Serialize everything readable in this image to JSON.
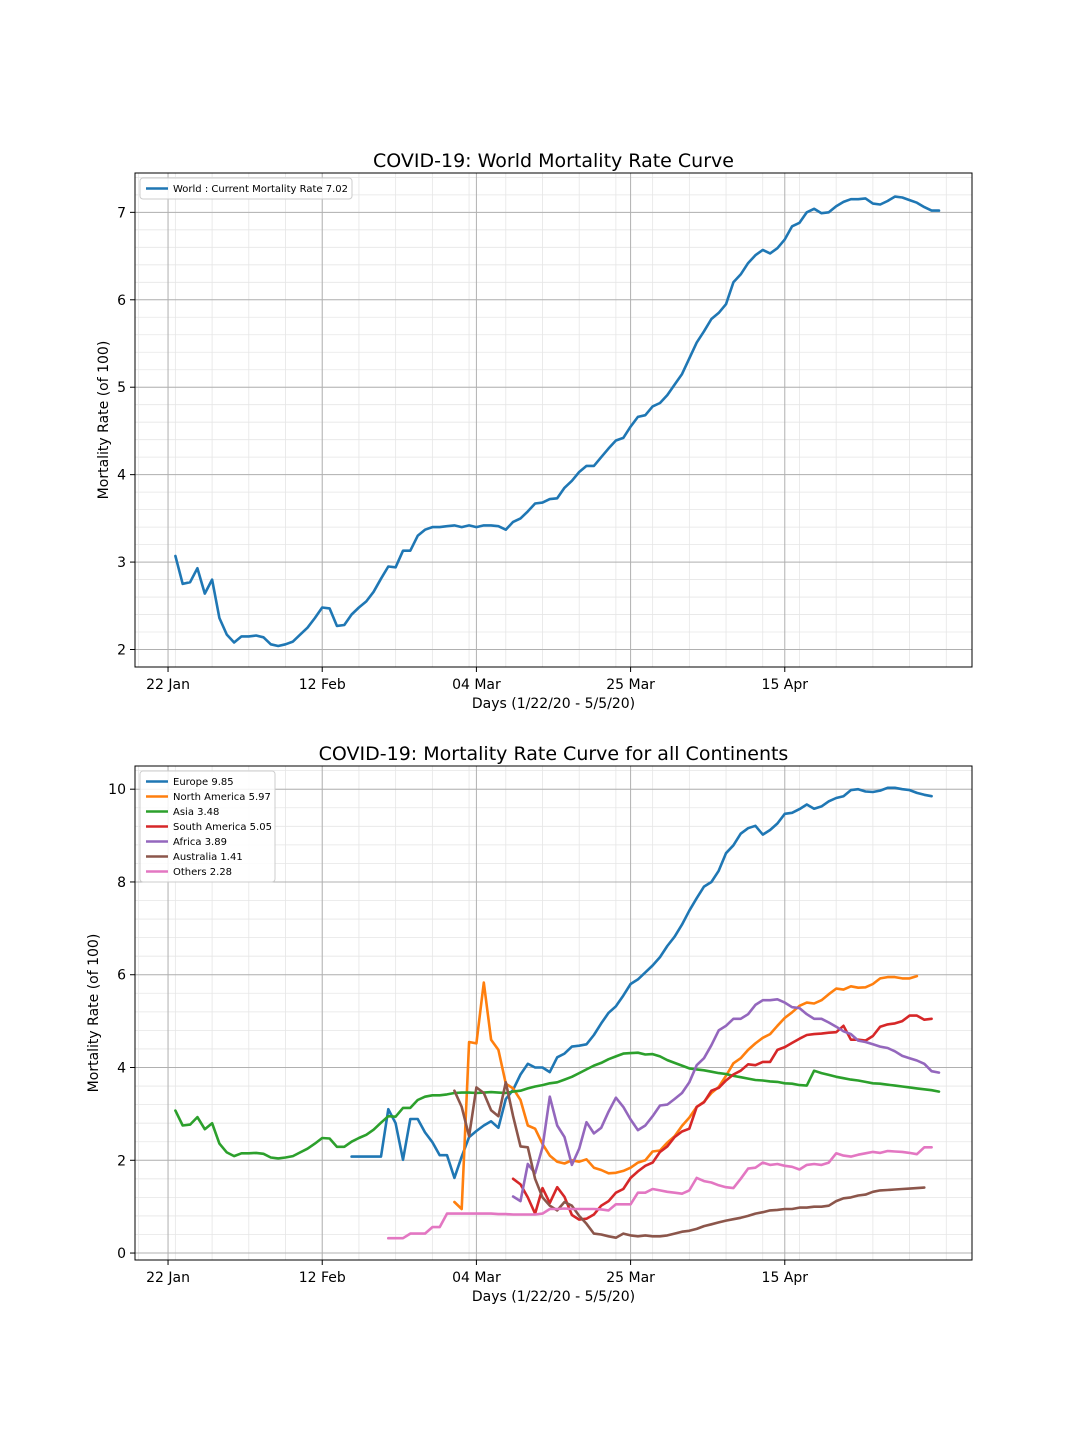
{
  "chart_data": [
    {
      "type": "line",
      "title": "COVID-19: World Mortality Rate Curve",
      "xlabel": "Days (1/22/20 - 5/5/20)",
      "ylabel": "Mortality Rate (of 100)",
      "xticks": [
        {
          "day": 0,
          "label": "22 Jan"
        },
        {
          "day": 21,
          "label": "12 Feb"
        },
        {
          "day": 42,
          "label": "04 Mar"
        },
        {
          "day": 63,
          "label": "25 Mar"
        },
        {
          "day": 84,
          "label": "15 Apr"
        }
      ],
      "xlim": [
        -4.5,
        109.5
      ],
      "ylim": [
        1.8,
        7.45
      ],
      "yticks": [
        2,
        3,
        4,
        5,
        6,
        7
      ],
      "grid": true,
      "legend_position": "upper left",
      "series": [
        {
          "name": "World : Current Mortality Rate 7.02",
          "color": "#1f77b4",
          "x_start": 1,
          "values": [
            3.07,
            2.75,
            2.77,
            2.93,
            2.64,
            2.8,
            2.36,
            2.17,
            2.08,
            2.15,
            2.15,
            2.16,
            2.14,
            2.06,
            2.04,
            2.06,
            2.09,
            2.17,
            2.25,
            2.36,
            2.48,
            2.47,
            2.27,
            2.28,
            2.4,
            2.48,
            2.55,
            2.66,
            2.81,
            2.95,
            2.94,
            3.13,
            3.13,
            3.3,
            3.37,
            3.4,
            3.4,
            3.41,
            3.42,
            3.4,
            3.42,
            3.4,
            3.42,
            3.42,
            3.41,
            3.37,
            3.46,
            3.5,
            3.58,
            3.67,
            3.68,
            3.72,
            3.73,
            3.85,
            3.93,
            4.03,
            4.1,
            4.1,
            4.2,
            4.3,
            4.39,
            4.42,
            4.55,
            4.66,
            4.68,
            4.78,
            4.82,
            4.91,
            5.03,
            5.15,
            5.33,
            5.51,
            5.64,
            5.78,
            5.85,
            5.95,
            6.2,
            6.29,
            6.42,
            6.51,
            6.57,
            6.53,
            6.59,
            6.69,
            6.84,
            6.88,
            7.0,
            7.04,
            6.99,
            7.0,
            7.07,
            7.12,
            7.15,
            7.15,
            7.16,
            7.1,
            7.09,
            7.13,
            7.18,
            7.17,
            7.14,
            7.11,
            7.06,
            7.02,
            7.02
          ]
        }
      ]
    },
    {
      "type": "line",
      "title": "COVID-19: Mortality Rate Curve for all Continents",
      "xlabel": "Days (1/22/20 - 5/5/20)",
      "ylabel": "Mortality Rate (of 100)",
      "xticks": [
        {
          "day": 0,
          "label": "22 Jan"
        },
        {
          "day": 21,
          "label": "12 Feb"
        },
        {
          "day": 42,
          "label": "04 Mar"
        },
        {
          "day": 63,
          "label": "25 Mar"
        },
        {
          "day": 84,
          "label": "15 Apr"
        }
      ],
      "xlim": [
        -4.5,
        109.5
      ],
      "ylim": [
        -0.15,
        10.5
      ],
      "yticks": [
        0,
        2,
        4,
        6,
        8,
        10
      ],
      "grid": true,
      "legend_position": "upper left",
      "series": [
        {
          "name": "Europe 9.85",
          "color": "#1f77b4",
          "x_start": 25,
          "values": [
            2.08,
            2.08,
            2.08,
            2.08,
            2.08,
            3.1,
            2.8,
            2.01,
            2.89,
            2.89,
            2.6,
            2.39,
            2.11,
            2.11,
            1.62,
            2.08,
            2.5,
            2.63,
            2.75,
            2.84,
            2.7,
            3.32,
            3.52,
            3.85,
            4.08,
            4.0,
            4.0,
            3.9,
            4.22,
            4.3,
            4.45,
            4.47,
            4.5,
            4.7,
            4.95,
            5.18,
            5.32,
            5.55,
            5.8,
            5.9,
            6.05,
            6.2,
            6.38,
            6.62,
            6.82,
            7.08,
            7.38,
            7.65,
            7.9,
            8.0,
            8.24,
            8.62,
            8.79,
            9.04,
            9.16,
            9.21,
            9.02,
            9.12,
            9.26,
            9.47,
            9.49,
            9.57,
            9.67,
            9.58,
            9.63,
            9.74,
            9.81,
            9.85,
            9.98,
            10.0,
            9.95,
            9.94,
            9.97,
            10.03,
            10.03,
            10.0,
            9.98,
            9.92,
            9.88,
            9.85
          ]
        },
        {
          "name": "North America 5.97",
          "color": "#ff7f0e",
          "x_start": 39,
          "values": [
            1.1,
            0.95,
            4.55,
            4.52,
            5.83,
            4.6,
            4.38,
            3.65,
            3.55,
            3.3,
            2.75,
            2.68,
            2.35,
            2.1,
            1.97,
            1.93,
            2.0,
            1.97,
            2.02,
            1.84,
            1.79,
            1.72,
            1.73,
            1.77,
            1.84,
            1.95,
            2.0,
            2.19,
            2.21,
            2.38,
            2.52,
            2.74,
            2.92,
            3.15,
            3.26,
            3.45,
            3.58,
            3.82,
            4.09,
            4.2,
            4.38,
            4.52,
            4.64,
            4.72,
            4.9,
            5.07,
            5.19,
            5.33,
            5.4,
            5.38,
            5.45,
            5.58,
            5.7,
            5.68,
            5.75,
            5.72,
            5.73,
            5.8,
            5.92,
            5.95,
            5.95,
            5.92,
            5.92,
            5.97
          ]
        },
        {
          "name": "Asia 3.48",
          "color": "#2ca02c",
          "x_start": 1,
          "values": [
            3.07,
            2.75,
            2.77,
            2.93,
            2.67,
            2.8,
            2.36,
            2.17,
            2.09,
            2.15,
            2.15,
            2.16,
            2.14,
            2.06,
            2.04,
            2.06,
            2.09,
            2.17,
            2.25,
            2.36,
            2.48,
            2.47,
            2.29,
            2.29,
            2.4,
            2.48,
            2.55,
            2.66,
            2.81,
            2.95,
            2.94,
            3.13,
            3.13,
            3.3,
            3.37,
            3.4,
            3.4,
            3.42,
            3.45,
            3.46,
            3.46,
            3.45,
            3.46,
            3.47,
            3.46,
            3.45,
            3.48,
            3.5,
            3.55,
            3.59,
            3.62,
            3.66,
            3.68,
            3.74,
            3.8,
            3.88,
            3.96,
            4.04,
            4.1,
            4.18,
            4.24,
            4.3,
            4.31,
            4.32,
            4.28,
            4.29,
            4.24,
            4.16,
            4.1,
            4.04,
            3.98,
            3.96,
            3.94,
            3.91,
            3.88,
            3.86,
            3.82,
            3.79,
            3.76,
            3.73,
            3.72,
            3.7,
            3.69,
            3.66,
            3.65,
            3.62,
            3.61,
            3.93,
            3.88,
            3.84,
            3.8,
            3.77,
            3.74,
            3.72,
            3.69,
            3.66,
            3.65,
            3.63,
            3.61,
            3.59,
            3.57,
            3.55,
            3.53,
            3.51,
            3.48
          ]
        },
        {
          "name": "South America 5.05",
          "color": "#d62728",
          "x_start": 47,
          "values": [
            1.6,
            1.48,
            1.2,
            0.85,
            1.4,
            1.08,
            1.42,
            1.21,
            0.82,
            0.72,
            0.74,
            0.83,
            1.02,
            1.12,
            1.3,
            1.38,
            1.62,
            1.76,
            1.88,
            1.95,
            2.18,
            2.3,
            2.5,
            2.62,
            2.68,
            3.15,
            3.25,
            3.5,
            3.56,
            3.72,
            3.85,
            3.93,
            4.07,
            4.05,
            4.12,
            4.12,
            4.38,
            4.44,
            4.53,
            4.62,
            4.7,
            4.72,
            4.73,
            4.75,
            4.76,
            4.9,
            4.6,
            4.6,
            4.58,
            4.68,
            4.88,
            4.93,
            4.95,
            5.0,
            5.12,
            5.12,
            5.03,
            5.05
          ]
        },
        {
          "name": "Africa 3.89",
          "color": "#9467bd",
          "x_start": 47,
          "values": [
            1.22,
            1.12,
            1.92,
            1.72,
            2.28,
            3.37,
            2.75,
            2.5,
            1.9,
            2.25,
            2.82,
            2.58,
            2.7,
            3.05,
            3.35,
            3.15,
            2.88,
            2.65,
            2.75,
            2.95,
            3.18,
            3.2,
            3.32,
            3.45,
            3.68,
            4.05,
            4.2,
            4.48,
            4.8,
            4.9,
            5.05,
            5.05,
            5.15,
            5.35,
            5.45,
            5.45,
            5.47,
            5.4,
            5.3,
            5.28,
            5.15,
            5.05,
            5.05,
            4.97,
            4.88,
            4.78,
            4.72,
            4.58,
            4.55,
            4.5,
            4.45,
            4.42,
            4.35,
            4.25,
            4.2,
            4.15,
            4.08,
            3.92,
            3.89
          ]
        },
        {
          "name": "Australia 1.41",
          "color": "#8c564b",
          "x_start": 39,
          "values": [
            3.5,
            3.15,
            2.52,
            3.57,
            3.45,
            3.08,
            2.95,
            3.68,
            2.95,
            2.3,
            2.28,
            1.6,
            1.2,
            1.02,
            0.92,
            1.1,
            1.02,
            0.8,
            0.63,
            0.42,
            0.4,
            0.36,
            0.33,
            0.42,
            0.38,
            0.36,
            0.38,
            0.36,
            0.36,
            0.38,
            0.42,
            0.46,
            0.48,
            0.52,
            0.58,
            0.62,
            0.66,
            0.7,
            0.73,
            0.76,
            0.8,
            0.85,
            0.88,
            0.92,
            0.93,
            0.95,
            0.95,
            0.98,
            0.98,
            1.0,
            1.0,
            1.02,
            1.12,
            1.18,
            1.2,
            1.24,
            1.26,
            1.32,
            1.35,
            1.36,
            1.37,
            1.38,
            1.39,
            1.4,
            1.41
          ]
        },
        {
          "name": "Others 2.28",
          "color": "#e377c2",
          "x_start": 30,
          "values": [
            0.32,
            0.32,
            0.32,
            0.42,
            0.42,
            0.42,
            0.56,
            0.56,
            0.85,
            0.85,
            0.85,
            0.85,
            0.85,
            0.85,
            0.85,
            0.84,
            0.84,
            0.83,
            0.83,
            0.83,
            0.83,
            0.85,
            0.95,
            0.95,
            0.96,
            0.95,
            0.95,
            0.95,
            0.95,
            0.94,
            0.92,
            1.05,
            1.05,
            1.05,
            1.3,
            1.3,
            1.38,
            1.35,
            1.32,
            1.3,
            1.28,
            1.35,
            1.62,
            1.55,
            1.52,
            1.46,
            1.42,
            1.4,
            1.6,
            1.82,
            1.84,
            1.95,
            1.9,
            1.92,
            1.88,
            1.86,
            1.8,
            1.9,
            1.92,
            1.9,
            1.95,
            2.15,
            2.1,
            2.08,
            2.12,
            2.15,
            2.18,
            2.16,
            2.2,
            2.19,
            2.18,
            2.16,
            2.13,
            2.28,
            2.28
          ]
        }
      ]
    }
  ]
}
